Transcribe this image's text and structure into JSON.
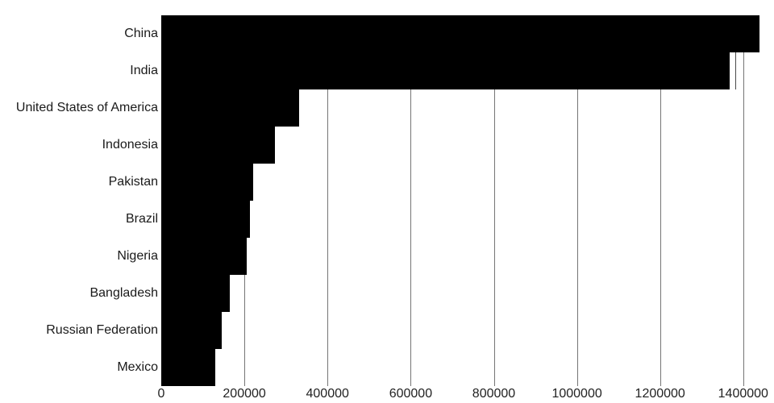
{
  "chart_data": {
    "type": "bar",
    "orientation": "horizontal",
    "title": "",
    "xlabel": "",
    "ylabel": "",
    "legend": false,
    "grid": true,
    "categories": [
      "China",
      "India",
      "United States of America",
      "Indonesia",
      "Pakistan",
      "Brazil",
      "Nigeria",
      "Bangladesh",
      "Russian Federation",
      "Mexico"
    ],
    "values": [
      1439324,
      1366418,
      331003,
      273524,
      220892,
      212559,
      206140,
      164689,
      145934,
      128933
    ],
    "annotations": [
      {
        "category": "India",
        "category_index": 1,
        "type": "value-tick",
        "value": 1380004
      }
    ],
    "x_tick_values": [
      0,
      200000,
      400000,
      600000,
      800000,
      1000000,
      1200000,
      1400000
    ],
    "x_tick_labels": [
      "0",
      "200000",
      "400000",
      "600000",
      "800000",
      "1000000",
      "1200000",
      "1400000"
    ],
    "xlim": [
      0,
      1474000
    ],
    "colors": {
      "bar": "#000000",
      "gridline": "#757575",
      "annotation_tick": "#4a4a4a",
      "category_label": "#1a1a1a",
      "tick_label": "#222222",
      "background": "#ffffff"
    }
  }
}
